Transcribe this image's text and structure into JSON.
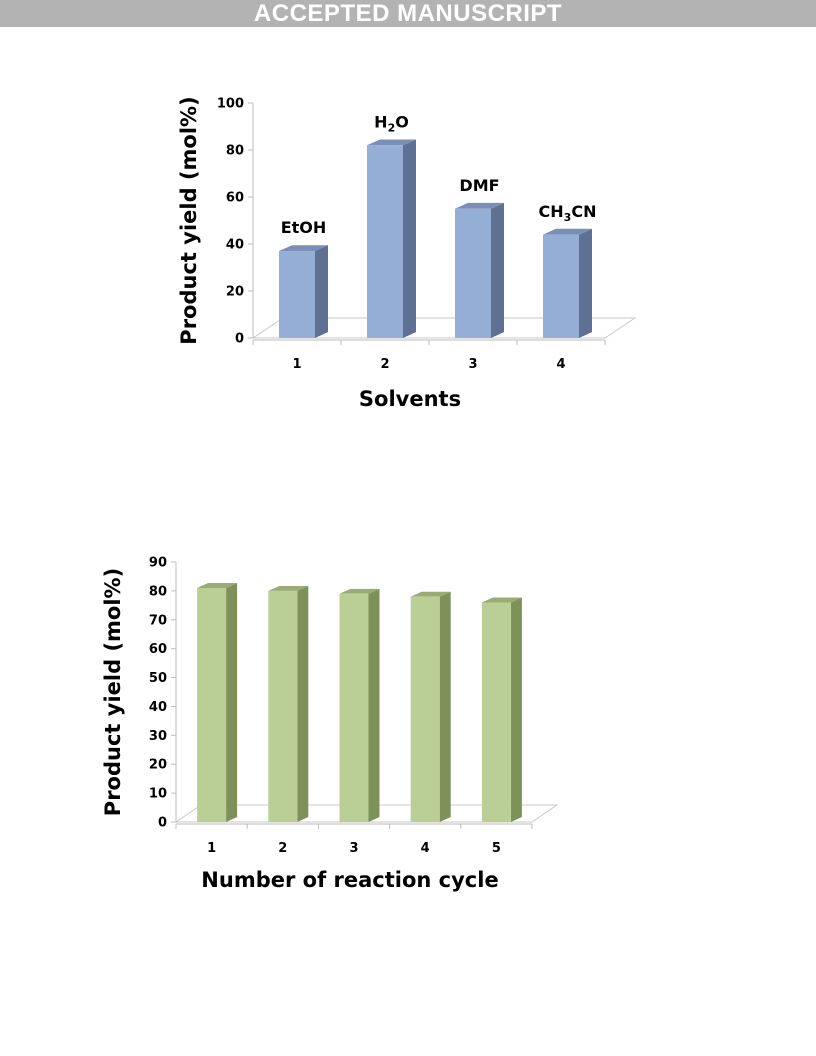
{
  "header": {
    "banner": "ACCEPTED MANUSCRIPT"
  },
  "chart_data": [
    {
      "type": "bar",
      "categories": [
        "1",
        "2",
        "3",
        "4"
      ],
      "values": [
        37,
        82,
        55,
        44
      ],
      "bar_labels": [
        "EtOH",
        "H2O",
        "DMF",
        "CH3CN"
      ],
      "xlabel": "Solvents",
      "ylabel": "Product yield (mol%)",
      "ylim": [
        0,
        100
      ],
      "yticks": [
        0,
        20,
        40,
        60,
        80,
        100
      ],
      "grid": false,
      "colors": {
        "front": "#95aed6",
        "side": "#5e7193",
        "top": "#7a8fb5"
      }
    },
    {
      "type": "bar",
      "categories": [
        "1",
        "2",
        "3",
        "4",
        "5"
      ],
      "values": [
        81,
        80,
        79,
        78,
        76
      ],
      "xlabel": "Number of reaction cycle",
      "ylabel": "Product yield (mol%)",
      "ylim": [
        0,
        90
      ],
      "yticks": [
        0,
        10,
        20,
        30,
        40,
        50,
        60,
        70,
        80,
        90
      ],
      "grid": false,
      "colors": {
        "front": "#b9cf95",
        "side": "#7d9159",
        "top": "#98ac73"
      }
    }
  ]
}
